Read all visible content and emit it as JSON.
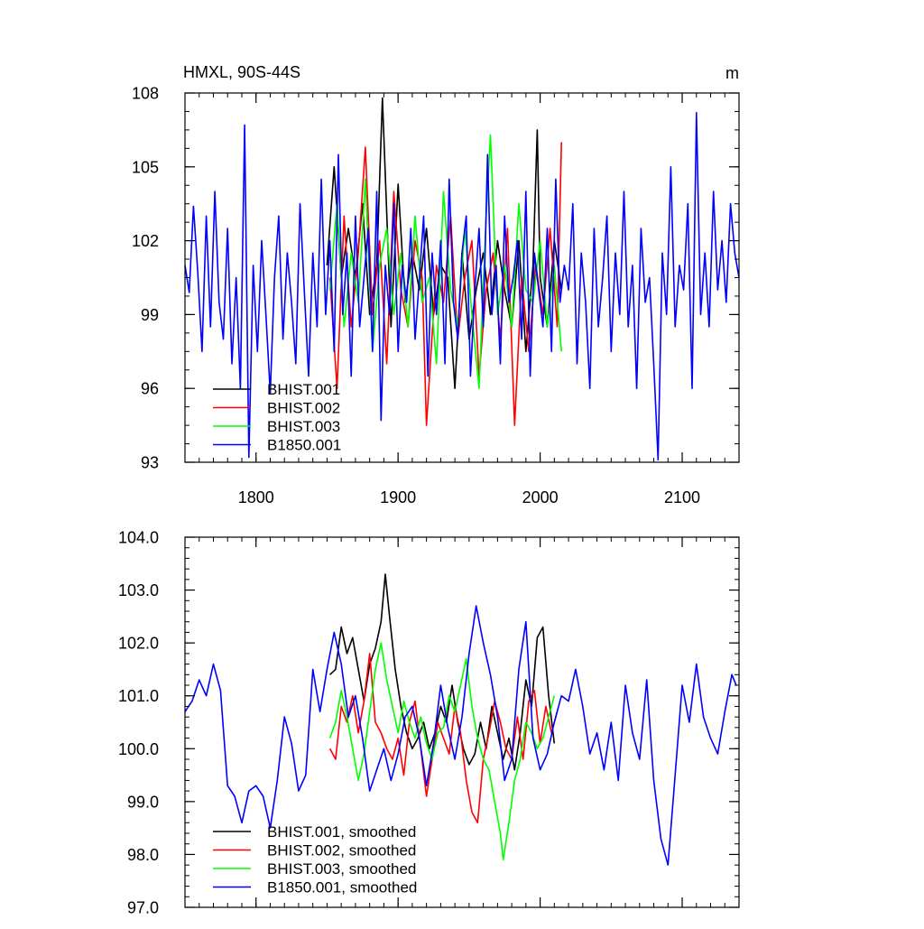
{
  "chart_data": [
    {
      "type": "line",
      "title": "HMXL, 90S-44S",
      "units": "m",
      "xlim": [
        1750,
        2140
      ],
      "ylim": [
        93,
        108
      ],
      "x_ticks": [
        1800,
        1900,
        2000,
        2100
      ],
      "x_tick_labels": [
        "1800",
        "1900",
        "2000",
        "2100"
      ],
      "y_ticks": [
        93,
        96,
        99,
        102,
        105,
        108
      ],
      "y_tick_labels": [
        "93",
        "96",
        "99",
        "102",
        "105",
        "108"
      ],
      "legend_position": "bottom-left",
      "series": [
        {
          "name": "BHIST.001",
          "color": "#000000",
          "x": [
            1850,
            1855,
            1860,
            1865,
            1870,
            1875,
            1880,
            1885,
            1889,
            1895,
            1900,
            1905,
            1910,
            1915,
            1920,
            1925,
            1930,
            1935,
            1940,
            1945,
            1950,
            1955,
            1960,
            1965,
            1970,
            1975,
            1980,
            1985,
            1990,
            1995,
            1998,
            2000,
            2005,
            2010,
            2015
          ],
          "values": [
            101.0,
            105.0,
            100.5,
            102.5,
            100.5,
            103.5,
            99.0,
            101.0,
            107.8,
            98.5,
            104.3,
            99.5,
            101.5,
            100.0,
            102.5,
            99.0,
            101.0,
            100.5,
            96.0,
            101.5,
            98.0,
            100.0,
            101.5,
            99.0,
            102.0,
            100.0,
            98.5,
            102.0,
            97.5,
            101.0,
            106.5,
            100.5,
            98.5,
            102.0,
            100.0
          ]
        },
        {
          "name": "BHIST.002",
          "color": "#ff0000",
          "x": [
            1852,
            1857,
            1862,
            1867,
            1872,
            1877,
            1882,
            1887,
            1892,
            1897,
            1902,
            1907,
            1912,
            1917,
            1920,
            1927,
            1932,
            1937,
            1942,
            1947,
            1952,
            1957,
            1962,
            1967,
            1972,
            1977,
            1982,
            1987,
            1992,
            1997,
            2002,
            2007,
            2012,
            2015
          ],
          "values": [
            100.5,
            96.0,
            103.0,
            98.5,
            101.5,
            105.8,
            99.0,
            102.0,
            97.0,
            104.0,
            100.0,
            98.5,
            102.0,
            100.5,
            94.5,
            101.0,
            99.5,
            103.0,
            98.0,
            100.5,
            102.0,
            96.5,
            100.0,
            101.5,
            98.0,
            102.5,
            94.5,
            100.5,
            97.5,
            101.0,
            99.0,
            102.5,
            98.5,
            106.0
          ]
        },
        {
          "name": "BHIST.003",
          "color": "#00ff00",
          "x": [
            1852,
            1857,
            1862,
            1867,
            1872,
            1877,
            1882,
            1887,
            1892,
            1897,
            1902,
            1907,
            1912,
            1917,
            1922,
            1927,
            1932,
            1937,
            1942,
            1947,
            1952,
            1957,
            1962,
            1965,
            1970,
            1975,
            1980,
            1985,
            1990,
            1995,
            2000,
            2005,
            2010,
            2015
          ],
          "values": [
            100.0,
            103.5,
            98.5,
            101.5,
            99.5,
            104.5,
            97.5,
            101.0,
            102.5,
            99.0,
            101.5,
            98.5,
            103.0,
            99.5,
            100.5,
            97.0,
            104.0,
            100.0,
            98.5,
            102.5,
            99.0,
            96.0,
            103.0,
            106.3,
            99.0,
            101.0,
            98.5,
            103.5,
            100.0,
            99.5,
            102.0,
            98.5,
            101.0,
            97.5
          ]
        },
        {
          "name": "B1850.001",
          "color": "#0000ff",
          "x": [
            1750,
            1753,
            1756,
            1759,
            1762,
            1765,
            1768,
            1771,
            1774,
            1777,
            1780,
            1783,
            1786,
            1789,
            1792,
            1795,
            1798,
            1801,
            1804,
            1807,
            1810,
            1813,
            1816,
            1819,
            1822,
            1825,
            1828,
            1831,
            1834,
            1837,
            1840,
            1843,
            1846,
            1849,
            1852,
            1855,
            1858,
            1861,
            1864,
            1867,
            1870,
            1873,
            1876,
            1879,
            1882,
            1885,
            1888,
            1891,
            1894,
            1897,
            1900,
            1903,
            1906,
            1909,
            1912,
            1915,
            1918,
            1921,
            1924,
            1927,
            1930,
            1933,
            1936,
            1939,
            1942,
            1945,
            1948,
            1951,
            1954,
            1957,
            1960,
            1963,
            1966,
            1969,
            1972,
            1975,
            1978,
            1981,
            1984,
            1987,
            1990,
            1993,
            1996,
            1999,
            2002,
            2005,
            2008,
            2011,
            2014,
            2017,
            2020,
            2023,
            2026,
            2029,
            2032,
            2035,
            2038,
            2041,
            2044,
            2047,
            2050,
            2053,
            2056,
            2059,
            2062,
            2065,
            2068,
            2071,
            2074,
            2077,
            2080,
            2083,
            2086,
            2089,
            2092,
            2095,
            2098,
            2101,
            2104,
            2107,
            2110,
            2113,
            2116,
            2119,
            2122,
            2125,
            2128,
            2131,
            2134,
            2137,
            2140
          ],
          "values": [
            101.0,
            99.9,
            103.4,
            100.7,
            97.5,
            103.0,
            98.5,
            104.0,
            99.5,
            98.0,
            102.5,
            97.0,
            100.5,
            96.0,
            106.7,
            93.2,
            101.0,
            97.5,
            102.0,
            99.0,
            95.8,
            100.5,
            103.0,
            98.0,
            101.5,
            99.5,
            97.0,
            103.5,
            100.0,
            96.5,
            101.5,
            98.5,
            104.5,
            99.0,
            102.0,
            97.5,
            105.5,
            99.0,
            101.5,
            96.5,
            103.0,
            98.5,
            100.5,
            102.5,
            97.5,
            104.0,
            94.7,
            101.0,
            99.0,
            103.5,
            97.5,
            101.0,
            99.5,
            102.5,
            98.0,
            100.5,
            103.0,
            96.5,
            101.5,
            99.0,
            102.0,
            97.0,
            104.5,
            99.5,
            98.0,
            101.5,
            103.0,
            96.5,
            100.0,
            102.5,
            98.5,
            105.5,
            99.0,
            101.0,
            97.0,
            103.0,
            99.5,
            100.5,
            102.0,
            98.0,
            104.0,
            96.5,
            101.5,
            100.0,
            98.5,
            102.5,
            97.5,
            104.5,
            99.5,
            101.0,
            100.0,
            103.5,
            97.0,
            101.5,
            99.5,
            96.0,
            102.5,
            98.5,
            100.5,
            103.0,
            97.5,
            101.5,
            99.0,
            104.0,
            98.5,
            101.0,
            96.0,
            102.5,
            99.5,
            100.5,
            97.0,
            93.1,
            101.5,
            99.0,
            105.0,
            98.5,
            101.0,
            100.0,
            103.5,
            96.0,
            107.2,
            99.0,
            101.5,
            98.5,
            104.0,
            100.0,
            102.0,
            99.5,
            103.5,
            101.5,
            100.5
          ]
        }
      ]
    },
    {
      "type": "line",
      "xlim": [
        1750,
        2140
      ],
      "ylim": [
        97.0,
        104.0
      ],
      "x_ticks": [
        1800,
        1900,
        2000,
        2100
      ],
      "y_ticks": [
        97.0,
        98.0,
        99.0,
        100.0,
        101.0,
        102.0,
        103.0,
        104.0
      ],
      "y_tick_labels": [
        "97.0",
        "98.0",
        "99.0",
        "100.0",
        "101.0",
        "102.0",
        "103.0",
        "104.0"
      ],
      "legend_position": "bottom-left",
      "series": [
        {
          "name": "BHIST.001, smoothed",
          "color": "#000000",
          "x": [
            1852,
            1856,
            1860,
            1864,
            1868,
            1872,
            1876,
            1880,
            1884,
            1888,
            1891,
            1894,
            1898,
            1902,
            1906,
            1910,
            1914,
            1918,
            1922,
            1926,
            1930,
            1934,
            1938,
            1942,
            1946,
            1950,
            1954,
            1958,
            1962,
            1966,
            1970,
            1974,
            1978,
            1982,
            1986,
            1990,
            1994,
            1998,
            2002,
            2006,
            2010
          ],
          "values": [
            101.4,
            101.5,
            102.3,
            101.8,
            102.1,
            101.5,
            100.9,
            101.6,
            101.9,
            102.4,
            103.3,
            102.5,
            101.5,
            100.8,
            100.3,
            100.0,
            100.2,
            100.5,
            100.0,
            100.3,
            100.8,
            100.5,
            101.2,
            100.5,
            100.0,
            99.7,
            99.9,
            100.5,
            100.0,
            100.8,
            100.3,
            99.8,
            100.2,
            99.6,
            100.3,
            101.3,
            100.8,
            102.1,
            102.3,
            101.0,
            100.1
          ]
        },
        {
          "name": "BHIST.002, smoothed",
          "color": "#ff0000",
          "x": [
            1852,
            1856,
            1860,
            1864,
            1868,
            1872,
            1876,
            1880,
            1884,
            1888,
            1892,
            1896,
            1900,
            1904,
            1908,
            1912,
            1916,
            1920,
            1924,
            1928,
            1932,
            1936,
            1940,
            1944,
            1948,
            1952,
            1956,
            1960,
            1964,
            1968,
            1972,
            1976,
            1980,
            1984,
            1988,
            1992,
            1996,
            2000,
            2004,
            2008,
            2012
          ],
          "values": [
            100.0,
            99.8,
            100.8,
            100.5,
            101.0,
            100.3,
            100.9,
            101.8,
            100.5,
            100.3,
            100.0,
            99.8,
            100.2,
            99.5,
            100.5,
            100.9,
            100.0,
            99.1,
            99.8,
            100.5,
            100.2,
            99.9,
            100.8,
            100.3,
            99.4,
            98.8,
            98.6,
            99.8,
            100.3,
            100.9,
            100.5,
            100.0,
            99.8,
            100.6,
            99.8,
            100.9,
            101.1,
            100.1,
            100.8,
            100.3,
            100.7
          ]
        },
        {
          "name": "BHIST.003, smoothed",
          "color": "#00ff00",
          "x": [
            1852,
            1856,
            1860,
            1864,
            1868,
            1872,
            1876,
            1880,
            1884,
            1888,
            1892,
            1896,
            1900,
            1904,
            1908,
            1912,
            1916,
            1920,
            1924,
            1928,
            1932,
            1936,
            1940,
            1944,
            1948,
            1952,
            1956,
            1960,
            1964,
            1968,
            1972,
            1974,
            1978,
            1982,
            1986,
            1990,
            1994,
            1998,
            2002,
            2006,
            2010
          ],
          "values": [
            100.2,
            100.5,
            101.1,
            100.6,
            100.0,
            99.4,
            99.9,
            100.7,
            101.5,
            102.0,
            101.3,
            100.8,
            100.3,
            100.9,
            100.5,
            100.2,
            100.6,
            100.1,
            99.8,
            100.3,
            100.4,
            101.0,
            100.7,
            101.2,
            101.7,
            100.8,
            100.2,
            99.8,
            99.6,
            99.0,
            98.4,
            97.9,
            98.6,
            99.4,
            99.8,
            100.5,
            100.3,
            100.0,
            100.2,
            100.6,
            101.0
          ]
        },
        {
          "name": "B1850.001, smoothed",
          "color": "#0000ff",
          "x": [
            1750,
            1755,
            1760,
            1765,
            1770,
            1775,
            1780,
            1785,
            1790,
            1795,
            1800,
            1805,
            1810,
            1815,
            1820,
            1825,
            1830,
            1835,
            1840,
            1845,
            1850,
            1855,
            1860,
            1865,
            1870,
            1875,
            1880,
            1885,
            1890,
            1895,
            1900,
            1905,
            1910,
            1915,
            1920,
            1925,
            1930,
            1935,
            1940,
            1945,
            1950,
            1955,
            1960,
            1965,
            1970,
            1975,
            1980,
            1985,
            1990,
            1995,
            2000,
            2005,
            2010,
            2015,
            2020,
            2025,
            2030,
            2035,
            2040,
            2045,
            2050,
            2055,
            2060,
            2065,
            2070,
            2075,
            2080,
            2085,
            2090,
            2095,
            2100,
            2105,
            2110,
            2115,
            2120,
            2125,
            2130,
            2135,
            2138
          ],
          "values": [
            100.7,
            100.9,
            101.3,
            101.0,
            101.6,
            101.1,
            99.3,
            99.1,
            98.6,
            99.2,
            99.3,
            99.1,
            98.5,
            99.4,
            100.6,
            100.1,
            99.2,
            99.5,
            101.5,
            100.7,
            101.5,
            102.2,
            101.6,
            100.6,
            101.0,
            100.2,
            99.2,
            99.6,
            100.0,
            99.4,
            99.9,
            100.6,
            100.8,
            100.2,
            99.3,
            100.1,
            101.2,
            100.4,
            99.8,
            100.6,
            101.8,
            102.7,
            102.0,
            101.4,
            100.6,
            99.4,
            99.8,
            101.5,
            102.4,
            100.2,
            99.6,
            99.9,
            100.5,
            101.0,
            100.9,
            101.5,
            100.8,
            99.9,
            100.3,
            99.6,
            100.5,
            99.4,
            101.2,
            100.3,
            99.8,
            101.3,
            99.4,
            98.3,
            97.8,
            99.5,
            101.2,
            100.5,
            101.6,
            100.6,
            100.2,
            99.9,
            100.7,
            101.4,
            101.2
          ]
        }
      ]
    }
  ]
}
